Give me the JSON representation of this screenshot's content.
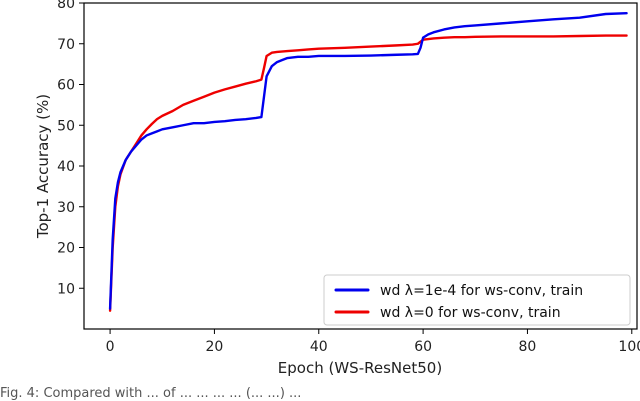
{
  "chart_data": {
    "type": "line",
    "title": "",
    "xlabel": "Epoch (WS-ResNet50)",
    "ylabel": "Top-1 Accuracy (%)",
    "xlim": [
      -5,
      101
    ],
    "ylim": [
      0,
      80
    ],
    "xticks": [
      0,
      20,
      40,
      60,
      80,
      100
    ],
    "yticks": [
      10,
      20,
      30,
      40,
      50,
      60,
      70,
      80
    ],
    "grid": false,
    "legend_position": "lower-right",
    "series": [
      {
        "name": "wd λ=1e-4 for ws-conv, train",
        "color": "#0000ee",
        "x": [
          0,
          0.5,
          1,
          1.5,
          2,
          3,
          4,
          5,
          6,
          7,
          8,
          9,
          10,
          12,
          14,
          16,
          18,
          20,
          22,
          24,
          26,
          28,
          29,
          29.5,
          30,
          31,
          32,
          33,
          34,
          36,
          38,
          40,
          45,
          50,
          55,
          58,
          59,
          59.5,
          60,
          61,
          62,
          64,
          66,
          68,
          70,
          75,
          80,
          85,
          90,
          95,
          99
        ],
        "y": [
          5,
          22,
          32,
          36,
          38.5,
          41.5,
          43.5,
          45,
          46.5,
          47.5,
          48,
          48.5,
          49,
          49.5,
          50,
          50.5,
          50.5,
          50.8,
          51,
          51.3,
          51.5,
          51.8,
          52,
          57,
          62,
          64.5,
          65.5,
          66,
          66.5,
          66.8,
          66.8,
          67,
          67,
          67.1,
          67.3,
          67.4,
          67.5,
          69,
          71.5,
          72.3,
          72.8,
          73.5,
          74,
          74.3,
          74.5,
          75,
          75.5,
          76,
          76.4,
          77.3,
          77.5
        ]
      },
      {
        "name": "wd λ=0 for ws-conv, train",
        "color": "#ee0000",
        "x": [
          0,
          0.5,
          1,
          1.5,
          2,
          3,
          4,
          5,
          6,
          7,
          8,
          9,
          10,
          12,
          14,
          16,
          18,
          20,
          22,
          24,
          26,
          28,
          29,
          29.5,
          30,
          31,
          32,
          34,
          36,
          38,
          40,
          45,
          50,
          55,
          58,
          59,
          59.5,
          60,
          62,
          64,
          66,
          68,
          70,
          75,
          80,
          85,
          90,
          95,
          99
        ],
        "y": [
          4.5,
          20,
          30,
          35,
          38,
          41.5,
          43.5,
          45.5,
          47.5,
          49,
          50.3,
          51.5,
          52.3,
          53.5,
          55,
          56,
          57,
          58,
          58.8,
          59.5,
          60.2,
          60.8,
          61.2,
          64,
          67,
          67.8,
          68,
          68.2,
          68.4,
          68.6,
          68.8,
          69,
          69.3,
          69.6,
          69.8,
          70,
          70.5,
          71,
          71.3,
          71.5,
          71.6,
          71.6,
          71.7,
          71.8,
          71.8,
          71.8,
          71.9,
          72,
          72
        ]
      }
    ]
  },
  "caption_text": "Fig. 4: Compared with ... of ... ... ... ... (... ...) ..."
}
